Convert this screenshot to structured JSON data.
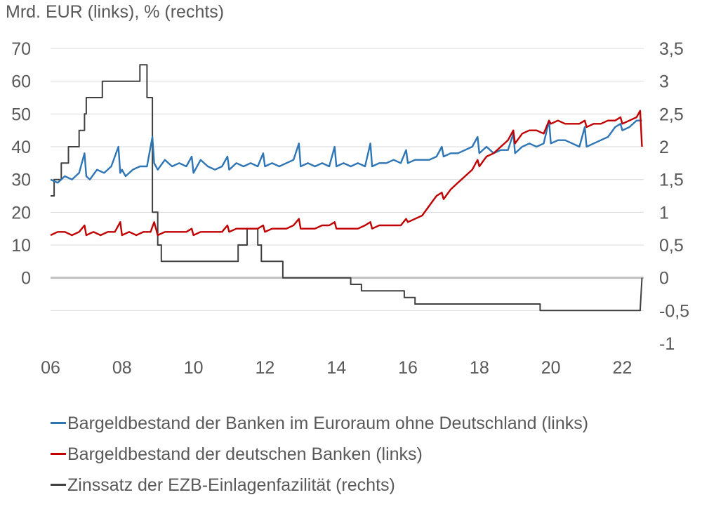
{
  "chart_data": {
    "type": "line",
    "units_label": "Mrd. EUR (links), % (rechts)",
    "x_ticks": [
      "06",
      "08",
      "10",
      "12",
      "14",
      "16",
      "18",
      "20",
      "22"
    ],
    "xlim": [
      2006,
      2022.6
    ],
    "y_left": {
      "ticks": [
        "70",
        "60",
        "50",
        "40",
        "30",
        "20",
        "10",
        "0"
      ],
      "ylim": [
        -20,
        70
      ]
    },
    "y_right": {
      "ticks": [
        "3,5",
        "3",
        "2,5",
        "2",
        "1,5",
        "1",
        "0,5",
        "0",
        "-0,5",
        "-1"
      ],
      "ylim": [
        -1,
        3.5
      ]
    },
    "grid": true,
    "colors": {
      "euro_area": "#2e75b6",
      "germany": "#c00000",
      "rate": "#404040",
      "grid": "#d9d9d9",
      "zero_line": "#bfbfbf"
    },
    "series": [
      {
        "name": "Bargeldbestand der Banken im Euroraum ohne Deutschland (links)",
        "axis": "left",
        "color": "#2e75b6",
        "x": [
          2006.0,
          2006.2,
          2006.4,
          2006.6,
          2006.8,
          2006.95,
          2007.0,
          2007.1,
          2007.3,
          2007.5,
          2007.7,
          2007.9,
          2007.95,
          2008.0,
          2008.1,
          2008.3,
          2008.5,
          2008.7,
          2008.85,
          2008.9,
          2009.0,
          2009.2,
          2009.4,
          2009.6,
          2009.8,
          2009.95,
          2010.0,
          2010.2,
          2010.4,
          2010.6,
          2010.8,
          2010.95,
          2011.0,
          2011.2,
          2011.4,
          2011.6,
          2011.8,
          2011.95,
          2012.0,
          2012.2,
          2012.4,
          2012.6,
          2012.8,
          2012.95,
          2013.0,
          2013.2,
          2013.4,
          2013.6,
          2013.8,
          2013.95,
          2014.0,
          2014.2,
          2014.4,
          2014.6,
          2014.8,
          2014.95,
          2015.0,
          2015.2,
          2015.4,
          2015.6,
          2015.8,
          2015.95,
          2016.0,
          2016.2,
          2016.4,
          2016.6,
          2016.8,
          2016.95,
          2017.0,
          2017.2,
          2017.4,
          2017.6,
          2017.8,
          2017.95,
          2018.0,
          2018.2,
          2018.4,
          2018.6,
          2018.8,
          2018.95,
          2019.0,
          2019.2,
          2019.4,
          2019.6,
          2019.8,
          2019.95,
          2020.0,
          2020.2,
          2020.4,
          2020.6,
          2020.8,
          2020.95,
          2021.0,
          2021.2,
          2021.4,
          2021.6,
          2021.8,
          2021.95,
          2022.0,
          2022.2,
          2022.4,
          2022.55
        ],
        "y": [
          30,
          29,
          31,
          30,
          32,
          38,
          31,
          30,
          33,
          32,
          34,
          40,
          32,
          33,
          31,
          33,
          34,
          34,
          43,
          35,
          33,
          36,
          34,
          35,
          34,
          37,
          32,
          36,
          34,
          33,
          34,
          37,
          33,
          35,
          34,
          35,
          34,
          38,
          34,
          35,
          34,
          35,
          36,
          41,
          34,
          35,
          34,
          35,
          34,
          40,
          34,
          35,
          34,
          35,
          34,
          41,
          34,
          35,
          35,
          36,
          35,
          39,
          35,
          36,
          36,
          36,
          37,
          40,
          37,
          38,
          38,
          39,
          40,
          43,
          38,
          40,
          38,
          39,
          39,
          44,
          38,
          40,
          41,
          40,
          41,
          48,
          41,
          42,
          42,
          41,
          40,
          46,
          40,
          41,
          42,
          43,
          46,
          47,
          45,
          46,
          48,
          48
        ]
      },
      {
        "name": "Bargeldbestand der deutschen Banken (links)",
        "axis": "left",
        "color": "#c00000",
        "x": [
          2006.0,
          2006.2,
          2006.4,
          2006.6,
          2006.8,
          2006.95,
          2007.0,
          2007.2,
          2007.4,
          2007.6,
          2007.8,
          2007.95,
          2008.0,
          2008.2,
          2008.4,
          2008.6,
          2008.8,
          2008.9,
          2009.0,
          2009.2,
          2009.4,
          2009.6,
          2009.8,
          2009.95,
          2010.0,
          2010.2,
          2010.4,
          2010.6,
          2010.8,
          2010.95,
          2011.0,
          2011.2,
          2011.4,
          2011.6,
          2011.8,
          2011.95,
          2012.0,
          2012.2,
          2012.4,
          2012.6,
          2012.8,
          2012.95,
          2013.0,
          2013.2,
          2013.4,
          2013.6,
          2013.8,
          2013.95,
          2014.0,
          2014.2,
          2014.4,
          2014.6,
          2014.8,
          2014.95,
          2015.0,
          2015.2,
          2015.4,
          2015.6,
          2015.8,
          2015.95,
          2016.0,
          2016.2,
          2016.4,
          2016.6,
          2016.8,
          2016.95,
          2017.0,
          2017.2,
          2017.4,
          2017.6,
          2017.8,
          2017.95,
          2018.0,
          2018.2,
          2018.4,
          2018.6,
          2018.8,
          2018.95,
          2019.0,
          2019.2,
          2019.4,
          2019.6,
          2019.8,
          2019.95,
          2020.0,
          2020.2,
          2020.4,
          2020.6,
          2020.8,
          2020.95,
          2021.0,
          2021.2,
          2021.4,
          2021.6,
          2021.8,
          2021.95,
          2022.0,
          2022.2,
          2022.4,
          2022.5,
          2022.55
        ],
        "y": [
          13,
          14,
          14,
          13,
          14,
          16,
          13,
          14,
          13,
          14,
          14,
          17,
          13,
          14,
          13,
          14,
          14,
          17,
          13,
          14,
          14,
          14,
          14,
          15,
          13,
          14,
          14,
          14,
          14,
          16,
          14,
          15,
          15,
          15,
          15,
          16,
          14,
          15,
          15,
          15,
          16,
          18,
          15,
          15,
          15,
          16,
          16,
          17,
          15,
          15,
          15,
          15,
          16,
          17,
          15,
          16,
          16,
          16,
          16,
          18,
          17,
          18,
          19,
          22,
          25,
          26,
          24,
          27,
          29,
          31,
          33,
          36,
          34,
          37,
          38,
          40,
          42,
          45,
          41,
          44,
          45,
          45,
          44,
          48,
          47,
          48,
          47,
          47,
          47,
          48,
          46,
          47,
          47,
          48,
          48,
          49,
          47,
          48,
          49,
          51,
          40
        ]
      },
      {
        "name": "Zinssatz der EZB-Einlagenfazilität (rechts)",
        "axis": "right",
        "color": "#404040",
        "x": [
          2006.0,
          2006.1,
          2006.1,
          2006.3,
          2006.3,
          2006.5,
          2006.5,
          2006.8,
          2006.8,
          2006.95,
          2006.95,
          2007.0,
          2007.0,
          2007.45,
          2007.45,
          2008.5,
          2008.5,
          2008.7,
          2008.7,
          2008.85,
          2008.85,
          2009.0,
          2009.0,
          2009.1,
          2009.1,
          2009.2,
          2009.2,
          2009.35,
          2009.35,
          2011.25,
          2011.25,
          2011.5,
          2011.5,
          2011.8,
          2011.8,
          2011.9,
          2011.9,
          2012.5,
          2012.5,
          2014.4,
          2014.4,
          2014.7,
          2014.7,
          2015.9,
          2015.9,
          2016.2,
          2016.2,
          2019.7,
          2019.7,
          2022.5,
          2022.5,
          2022.55
        ],
        "y": [
          1.25,
          1.25,
          1.5,
          1.5,
          1.75,
          1.75,
          2.0,
          2.0,
          2.25,
          2.25,
          2.5,
          2.5,
          2.75,
          2.75,
          3.0,
          3.0,
          3.25,
          3.25,
          2.75,
          2.75,
          1.0,
          1.0,
          0.5,
          0.5,
          0.25,
          0.25,
          0.25,
          0.25,
          0.25,
          0.25,
          0.5,
          0.5,
          0.75,
          0.75,
          0.5,
          0.5,
          0.25,
          0.25,
          0.0,
          0.0,
          -0.1,
          -0.1,
          -0.2,
          -0.2,
          -0.3,
          -0.3,
          -0.4,
          -0.4,
          -0.5,
          -0.5,
          -0.5,
          0.0
        ]
      }
    ]
  }
}
